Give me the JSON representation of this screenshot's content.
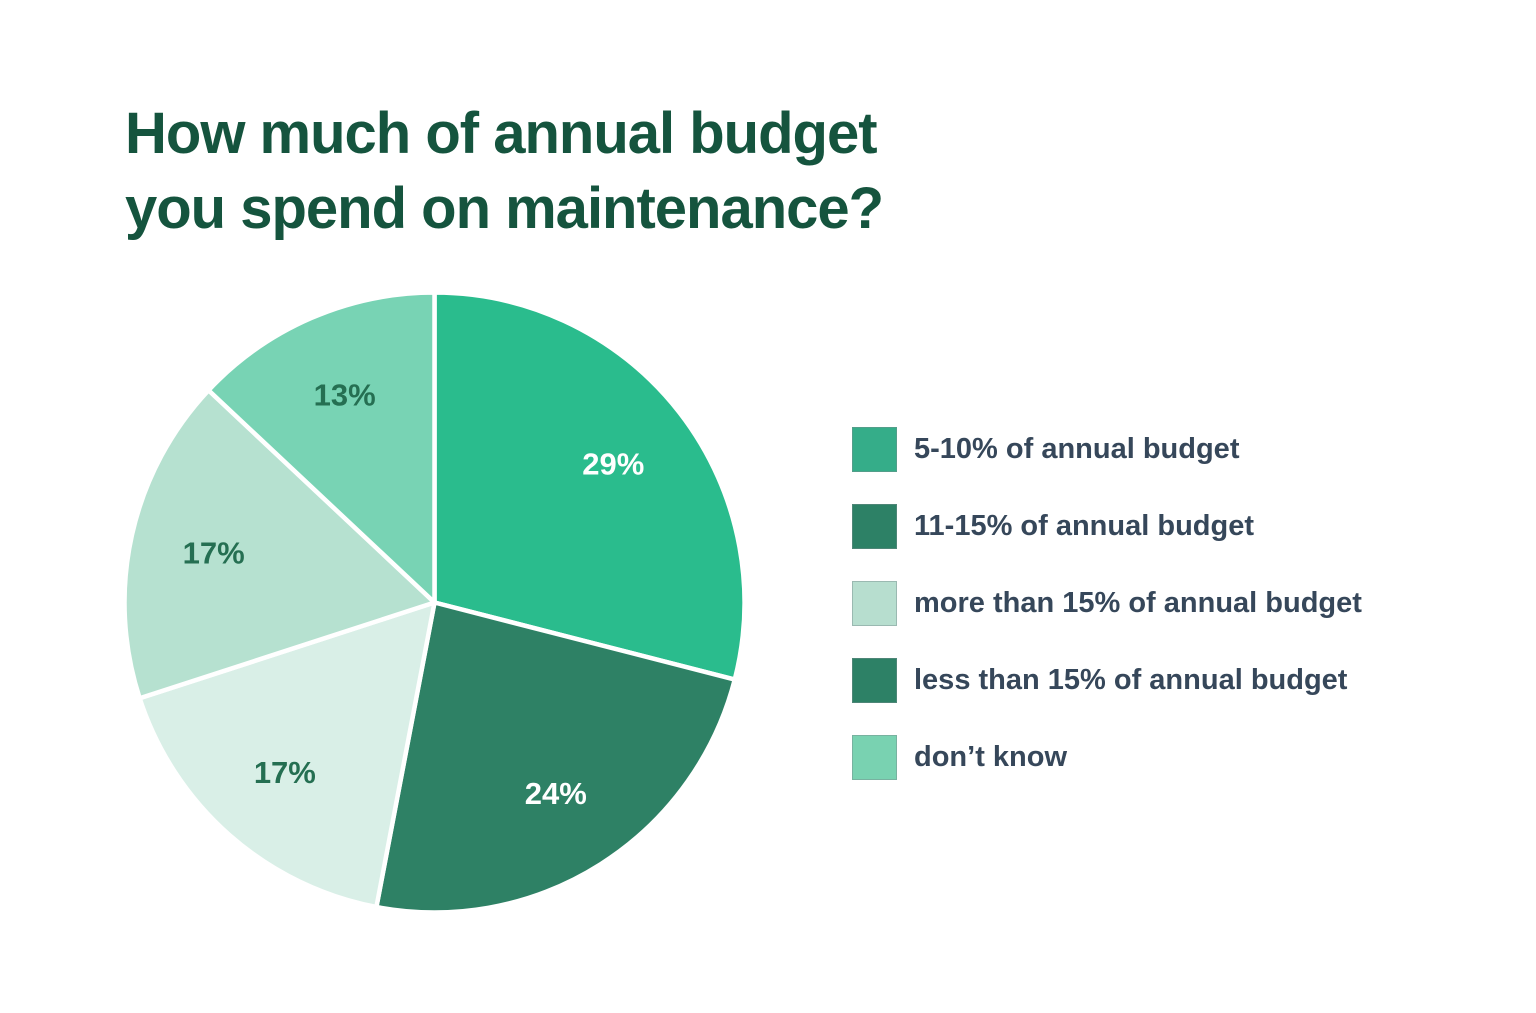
{
  "header": {
    "title_line1": "How much of annual budget",
    "title_line2": "you spend on maintenance?",
    "title_color": "#15543e"
  },
  "chart_data": {
    "type": "pie",
    "title": "How much of annual budget you spend on maintenance?",
    "start_angle_deg": 0,
    "direction": "clockwise",
    "total": 100,
    "legend_position": "right",
    "slices": [
      {
        "label": "5-10% of annual budget",
        "value": 29,
        "display": "29%",
        "color": "#2abc8d",
        "label_color": "#ffffff"
      },
      {
        "label": "11-15% of annual budget",
        "value": 24,
        "display": "24%",
        "color": "#2e8165",
        "label_color": "#ffffff"
      },
      {
        "label": "more than 15% of annual budget",
        "value": 17,
        "display": "17%",
        "color": "#d9efe7",
        "label_color": "#256f52"
      },
      {
        "label": "less than 15% of annual budget",
        "value": 17,
        "display": "17%",
        "color": "#b6e1d0",
        "label_color": "#256f52"
      },
      {
        "label": "don’t know",
        "value": 13,
        "display": "13%",
        "color": "#78d3b4",
        "label_color": "#256f52"
      }
    ]
  },
  "legend": {
    "text_color": "#36475a",
    "items": [
      {
        "label": "5-10% of annual budget",
        "color": "#35ad89"
      },
      {
        "label": "11-15% of annual budget",
        "color": "#2d8166"
      },
      {
        "label": "more than 15% of annual budget",
        "color": "#b7decf"
      },
      {
        "label": "less than 15% of annual budget",
        "color": "#2d8166"
      },
      {
        "label": "don’t know",
        "color": "#79d2b1"
      }
    ]
  }
}
